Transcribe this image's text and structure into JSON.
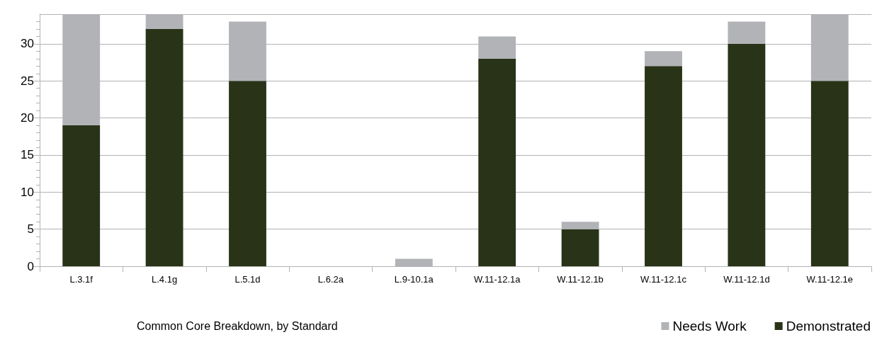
{
  "chart_data": {
    "type": "bar",
    "title": "Common Core Breakdown, by Standard",
    "categories": [
      "L.3.1f",
      "L.4.1g",
      "L.5.1d",
      "L.6.2a",
      "L.9-10.1a",
      "W.11-12.1a",
      "W.11-12.1b",
      "W.11-12.1c",
      "W.11-12.1d",
      "W.11-12.1e"
    ],
    "series": [
      {
        "name": "Demonstrated",
        "color": "#283318",
        "values": [
          19,
          32,
          25,
          0,
          0,
          28,
          5,
          27,
          30,
          25
        ]
      },
      {
        "name": "Needs Work",
        "color": "#b2b3b6",
        "values": [
          15,
          2,
          8,
          0,
          1,
          3,
          1,
          2,
          3,
          9
        ]
      }
    ],
    "stacked": true,
    "ylim": [
      0,
      34
    ],
    "yticks": [
      0,
      5,
      10,
      15,
      20,
      25,
      30
    ],
    "grid": "y",
    "legend": "bottom right"
  }
}
